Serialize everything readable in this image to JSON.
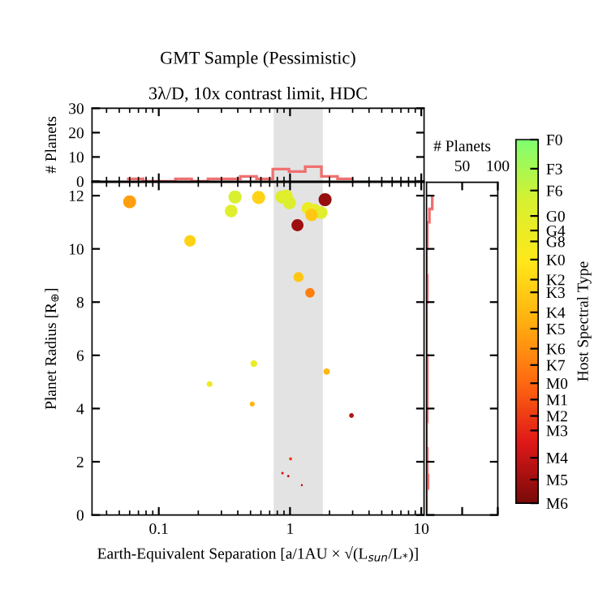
{
  "chart_data": [
    {
      "type": "histogram",
      "title": "GMT Sample (Pessimistic)",
      "subtitle": "3λ/D, 10x contrast limit, HDC",
      "ylabel": "# Planets",
      "log": "x",
      "color": "#f07070",
      "bins": [
        0.0572,
        0.076,
        0.101,
        0.134,
        0.178,
        0.237,
        0.315,
        0.418,
        0.556,
        0.739,
        0.982,
        1.305,
        1.734,
        2.3,
        3.06
      ],
      "values": [
        1,
        0,
        0,
        1,
        0,
        1,
        1,
        2,
        1,
        5,
        4,
        6,
        2,
        1
      ],
      "xlim": [
        0.031,
        10.5
      ],
      "ylim": [
        0,
        30
      ],
      "yticks": [
        0,
        10,
        20,
        30
      ],
      "tick_labels": "y",
      "bands": [
        {
          "axis": "x",
          "from": 0.75,
          "to": 1.78,
          "color": "#e3e3e3"
        }
      ]
    },
    {
      "type": "bubble",
      "xlabel": "Earth-Equivalent Separation [a/1AU × √(L$_{sun}$/L$_{*}$)]",
      "ylabel": "Planet Radius [R$_{⊕}$]",
      "clabel": "Host Spectral Type",
      "log": "x",
      "marker": "circle",
      "grid": false,
      "x": [
        0.06,
        0.173,
        0.244,
        0.356,
        0.381,
        0.53,
        0.515,
        0.577,
        0.868,
        0.936,
        0.99,
        1.14,
        1.16,
        1.37,
        1.53,
        1.73,
        1.46,
        1.42,
        1.85,
        1.9,
        2.94,
        1.01,
        0.876,
        0.97,
        1.23
      ],
      "values": [
        11.77,
        10.3,
        4.92,
        11.42,
        11.95,
        5.69,
        4.17,
        11.93,
        11.95,
        11.98,
        11.73,
        10.89,
        8.94,
        11.52,
        11.46,
        11.36,
        11.28,
        8.35,
        11.85,
        5.39,
        3.74,
        2.11,
        1.57,
        1.46,
        1.12
      ],
      "sizes": [
        0.97,
        0.76,
        0.2,
        0.92,
        1.0,
        0.26,
        0.15,
        0.99,
        1.0,
        1.0,
        0.96,
        0.84,
        0.58,
        0.93,
        0.92,
        0.91,
        0.9,
        0.52,
        0.98,
        0.24,
        0.13,
        0.054,
        0.036,
        0.033,
        0.024
      ],
      "cvalues": [
        46,
        60,
        75,
        80,
        83,
        75,
        52,
        60,
        82,
        80,
        82,
        6,
        57,
        75,
        76,
        80,
        57,
        38,
        5,
        52,
        10,
        24,
        15,
        10,
        8
      ],
      "clim": [
        0,
        100
      ],
      "cticks": [
        {
          "value": 100,
          "label": "F0"
        },
        {
          "value": 92,
          "label": "F3"
        },
        {
          "value": 86,
          "label": "F6"
        },
        {
          "value": 79,
          "label": "G0"
        },
        {
          "value": 75,
          "label": "G4"
        },
        {
          "value": 72,
          "label": "G8"
        },
        {
          "value": 67,
          "label": "K0"
        },
        {
          "value": 61.5,
          "label": "K2"
        },
        {
          "value": 58,
          "label": "K3"
        },
        {
          "value": 52.5,
          "label": "K4"
        },
        {
          "value": 48,
          "label": "K5"
        },
        {
          "value": 42.5,
          "label": "K6"
        },
        {
          "value": 38,
          "label": "K7"
        },
        {
          "value": 33,
          "label": "M0"
        },
        {
          "value": 28.5,
          "label": "M1"
        },
        {
          "value": 24,
          "label": "M2"
        },
        {
          "value": 20,
          "label": "M3"
        },
        {
          "value": 12.5,
          "label": "M4"
        },
        {
          "value": 6.5,
          "label": "M5"
        },
        {
          "value": 0,
          "label": "M6"
        }
      ],
      "xlim": [
        0.031,
        10.5
      ],
      "ylim": [
        0,
        12.5
      ],
      "xticks": [
        0.1,
        1,
        10
      ],
      "yticks": [
        0,
        2,
        4,
        6,
        8,
        10,
        12
      ],
      "bands": [
        {
          "axis": "x",
          "from": 0.75,
          "to": 1.78,
          "color": "#e3e3e3"
        }
      ]
    },
    {
      "type": "histogram",
      "orientation": "horizontal",
      "xlabel": "# Planets",
      "color": "#f07070",
      "bins": [
        0,
        0.5,
        1,
        1.5,
        2,
        2.5,
        3,
        3.5,
        4,
        4.5,
        5,
        5.5,
        6,
        6.5,
        7,
        7.5,
        8,
        8.5,
        9,
        9.5,
        10,
        10.5,
        11,
        11.5,
        12
      ],
      "values": [
        0,
        0,
        2,
        1,
        1,
        0,
        0,
        1,
        1,
        1,
        1,
        1,
        0,
        0,
        0,
        0,
        1,
        1,
        0,
        0,
        1,
        1,
        4,
        8
      ],
      "xlim": [
        0,
        100
      ],
      "xticks": [
        50,
        100
      ],
      "ylim": [
        0,
        12.5
      ],
      "yticks": [
        0,
        2,
        4,
        6,
        8,
        10,
        12
      ],
      "tick_labels": "x"
    }
  ]
}
